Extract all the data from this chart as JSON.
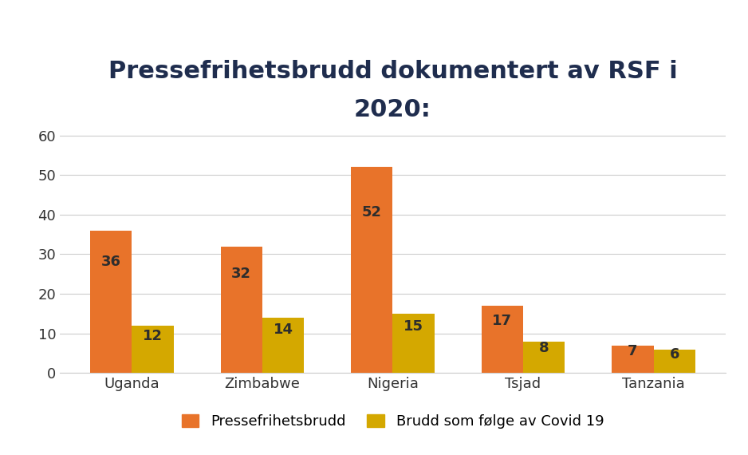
{
  "title": "Pressefrihetsbrudd dokumentert av RSF i\n2020:",
  "categories": [
    "Uganda",
    "Zimbabwe",
    "Nigeria",
    "Tsjad",
    "Tanzania"
  ],
  "pressefrihetsbrudd": [
    36,
    32,
    52,
    17,
    7
  ],
  "covid_brudd": [
    12,
    14,
    15,
    8,
    6
  ],
  "bar_color_press": "#E8732A",
  "bar_color_covid": "#D4A800",
  "legend_press": "Pressefrihetsbrudd",
  "legend_covid": "Brudd som følge av Covid 19",
  "ylim": [
    0,
    62
  ],
  "yticks": [
    0,
    10,
    20,
    30,
    40,
    50,
    60
  ],
  "bar_width": 0.32,
  "title_color": "#1F2D4E",
  "label_color": "#333333",
  "tick_color": "#333333",
  "background_color": "#FFFFFF",
  "title_fontsize": 22,
  "tick_fontsize": 13,
  "legend_fontsize": 13,
  "value_fontsize": 13,
  "value_color": "#2D2D2D"
}
